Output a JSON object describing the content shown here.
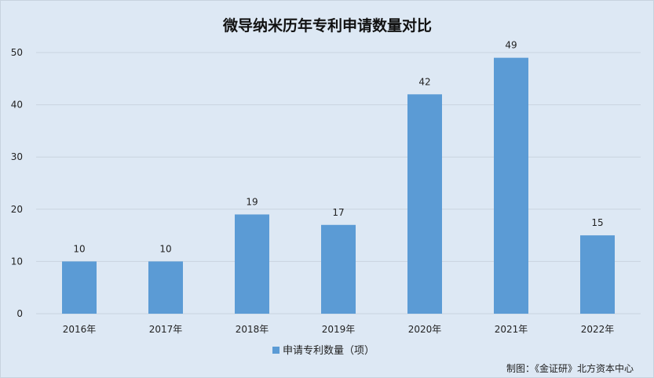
{
  "chart_data": {
    "type": "bar",
    "title": "微导纳米历年专利申请数量对比",
    "categories": [
      "2016年",
      "2017年",
      "2018年",
      "2019年",
      "2020年",
      "2021年",
      "2022年"
    ],
    "series": [
      {
        "name": "申请专利数量（项）",
        "values": [
          10,
          10,
          19,
          17,
          42,
          49,
          15
        ]
      }
    ],
    "ylim": [
      0,
      50
    ],
    "yticks": [
      0,
      10,
      20,
      30,
      40,
      50
    ],
    "grid": true,
    "legend_position": "bottom",
    "data_labels": true
  },
  "colors": {
    "bar": "#5b9bd5",
    "background": "#dde8f4",
    "grid": "#c9d4df"
  },
  "source_note": "制图：《金证研》北方资本中心"
}
